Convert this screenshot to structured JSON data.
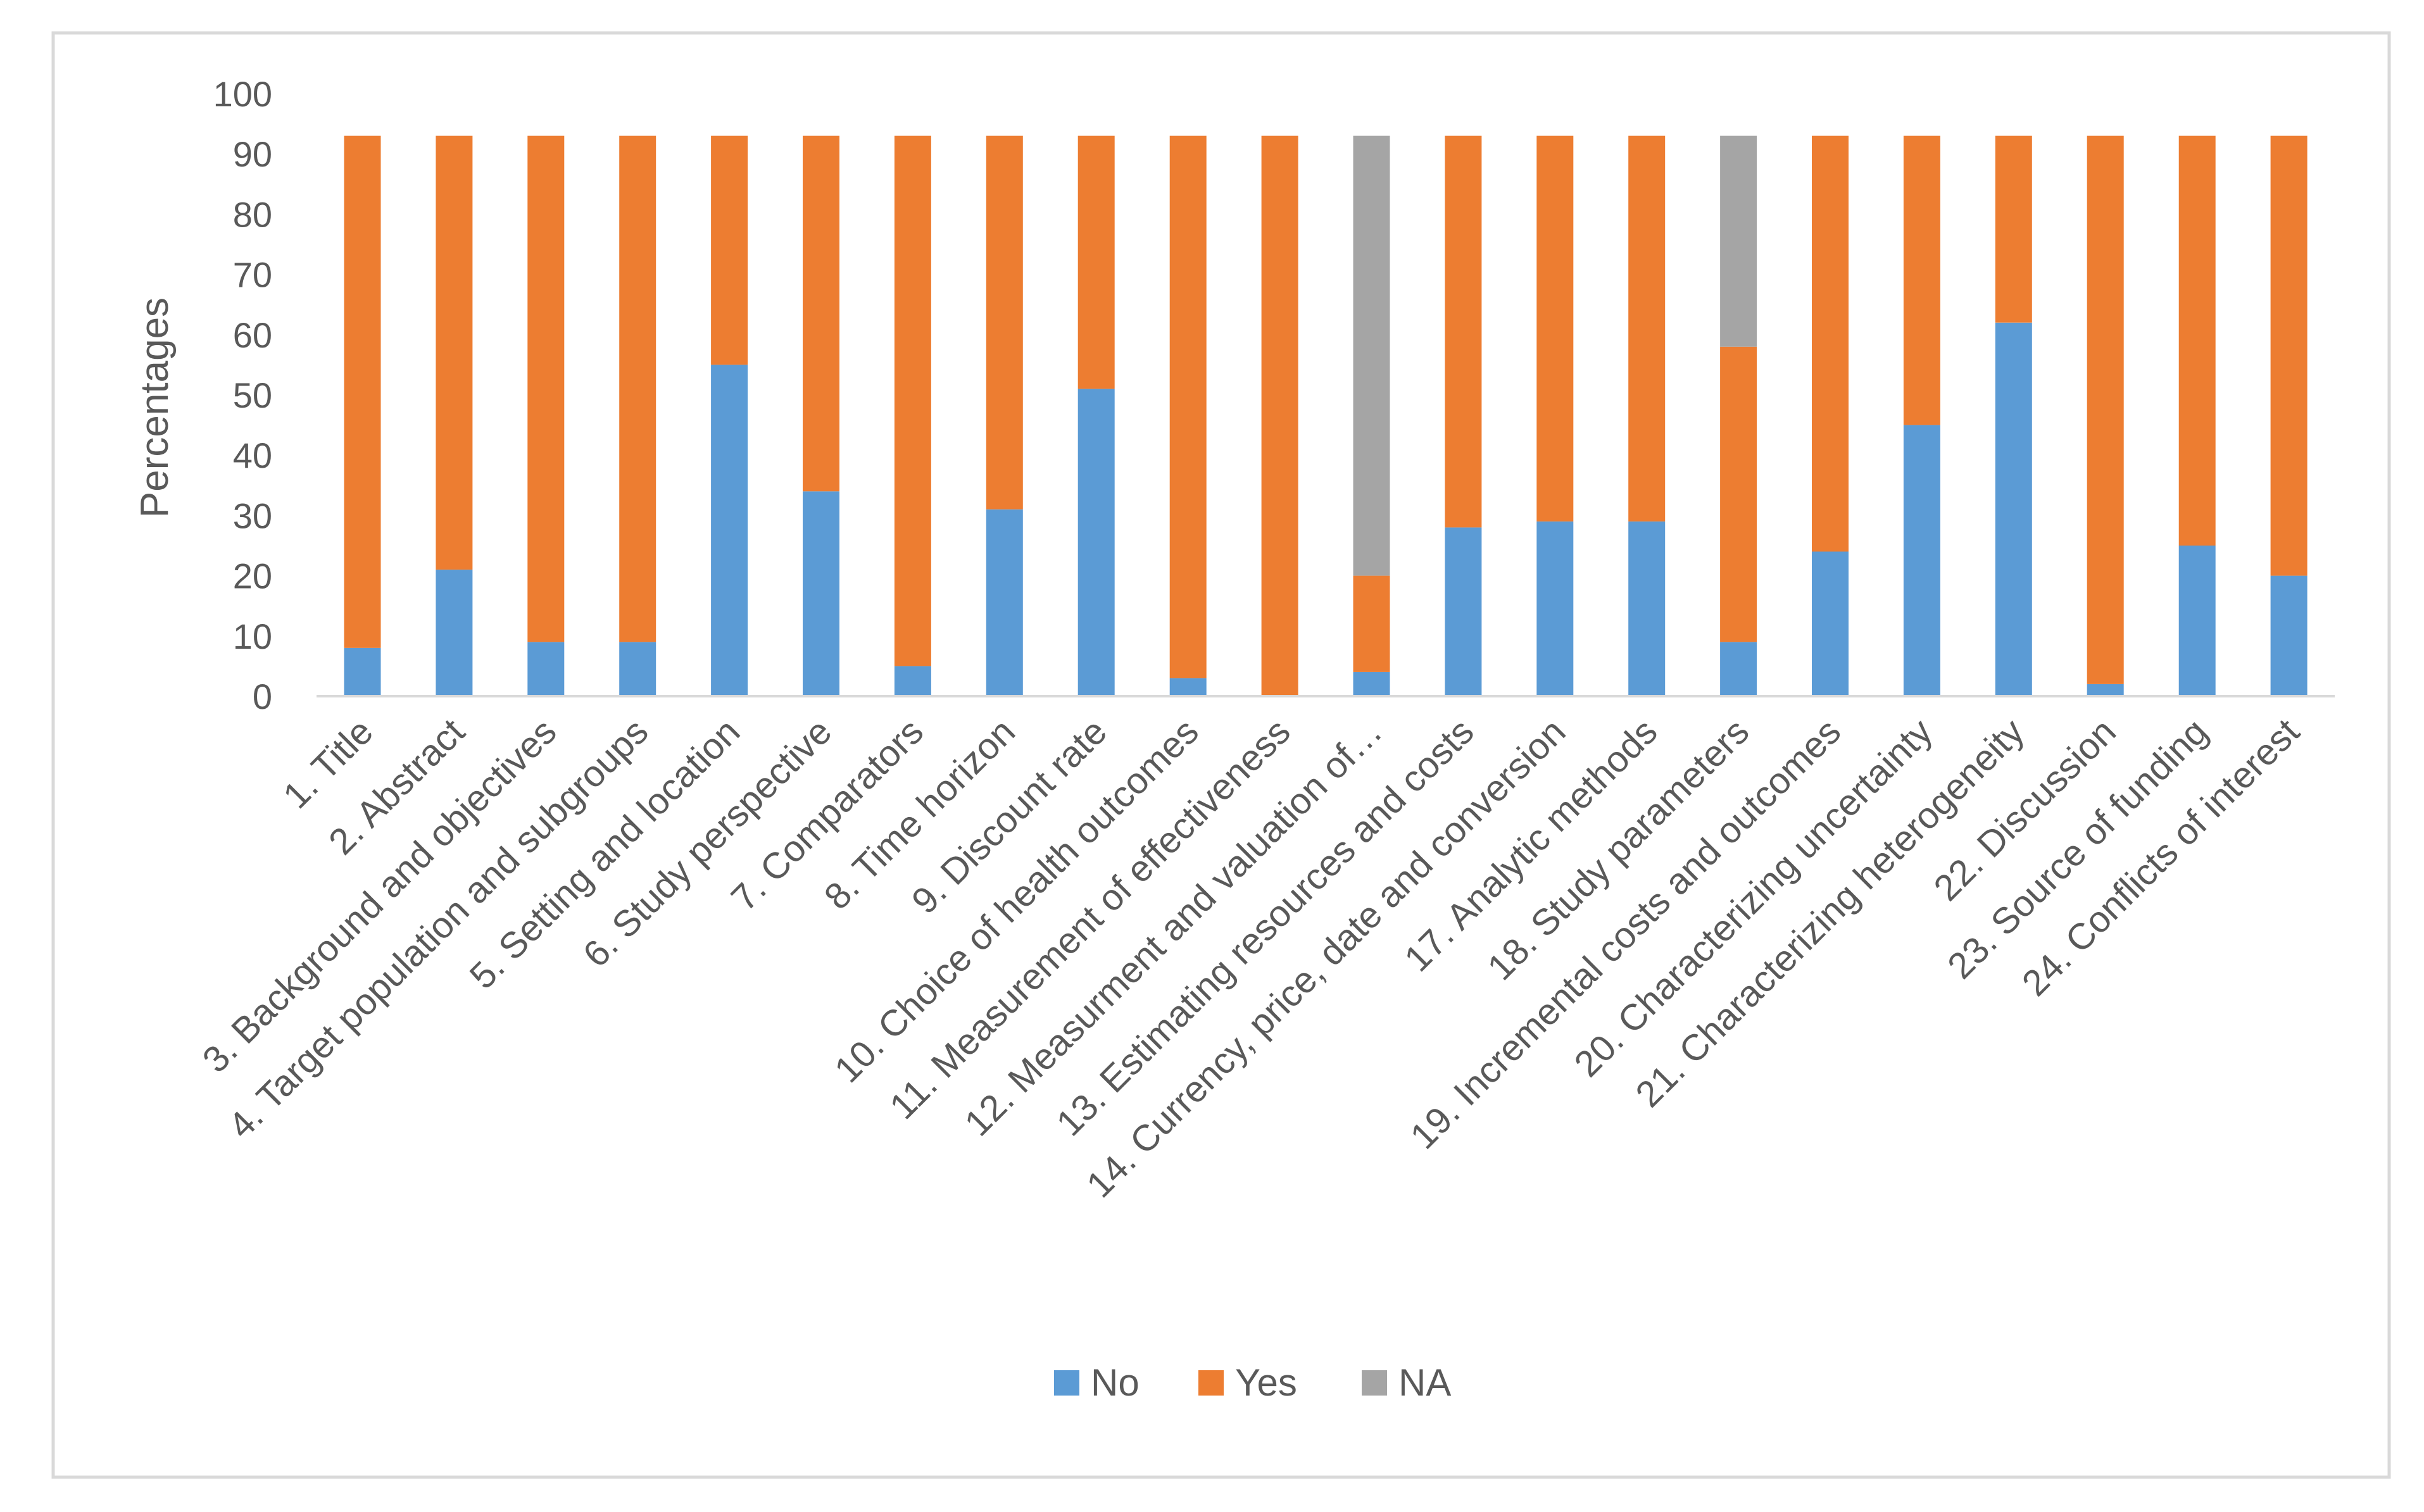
{
  "chart_data": {
    "type": "bar",
    "stacked": true,
    "title": "",
    "xlabel": "",
    "ylabel": "Percentages",
    "ylim": [
      0,
      100
    ],
    "yticks": [
      0,
      10,
      20,
      30,
      40,
      50,
      60,
      70,
      80,
      90,
      100
    ],
    "grid": false,
    "legend_position": "bottom",
    "categories": [
      "1. Title",
      "2. Abstract",
      "3. Background and objectives",
      "4. Target population and subgroups",
      "5. Setting and location",
      "6. Study perspective",
      "7. Comparators",
      "8. Time horizon",
      "9. Discount rate",
      "10. Choice of health outcomes",
      "11. Measurement of effectiveness",
      "12. Measurment and valuation of…",
      "13. Estimating resources and costs",
      "14. Currency, price, date and conversion",
      "17. Analytic methods",
      "18. Study parameters",
      "19. Incremental costs and outcomes",
      "20. Characterizing uncertainty",
      "21. Characterizing heterogeneity",
      "22. Discussion",
      "23. Source of funding",
      "24. Conflicts of interest"
    ],
    "series": [
      {
        "name": "No",
        "color": "#5B9BD5",
        "values": [
          8,
          21,
          9,
          9,
          55,
          34,
          5,
          31,
          51,
          3,
          0,
          4,
          28,
          29,
          29,
          9,
          24,
          45,
          62,
          2,
          25,
          20
        ]
      },
      {
        "name": "Yes",
        "color": "#ED7D31",
        "values": [
          85,
          72,
          84,
          84,
          38,
          59,
          88,
          62,
          42,
          90,
          93,
          16,
          65,
          64,
          64,
          49,
          69,
          48,
          31,
          91,
          68,
          73
        ]
      },
      {
        "name": "NA",
        "color": "#A5A5A5",
        "values": [
          0,
          0,
          0,
          0,
          0,
          0,
          0,
          0,
          0,
          0,
          0,
          73,
          0,
          0,
          0,
          35,
          0,
          0,
          0,
          0,
          0,
          0
        ]
      }
    ]
  }
}
